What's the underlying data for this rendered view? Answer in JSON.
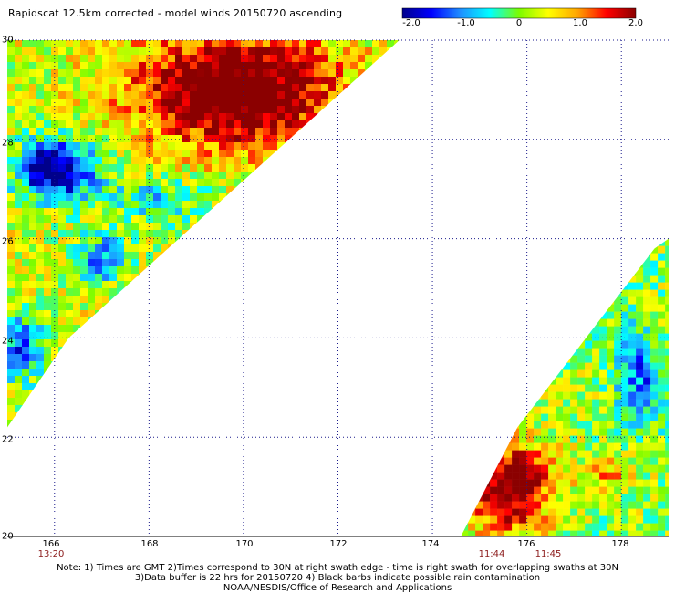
{
  "title": "Rapidscat 12.5km corrected - model winds 20150720 ascending",
  "colorbar": {
    "ticks": [
      {
        "label": "-2.0",
        "value": -2.0
      },
      {
        "label": "-1.0",
        "value": -1.0
      },
      {
        "label": "0",
        "value": 0
      },
      {
        "label": "1.0",
        "value": 1.0
      },
      {
        "label": "2.0",
        "value": 2.0
      }
    ],
    "stops": [
      "#00008b",
      "#0000ff",
      "#1e90ff",
      "#00ffff",
      "#7cfc00",
      "#ffff00",
      "#ffa500",
      "#ff0000",
      "#8b0000"
    ]
  },
  "map": {
    "lon_range": [
      165,
      179
    ],
    "lat_range": [
      20,
      30
    ],
    "lat_labels": [
      {
        "label": "30",
        "value": 30
      },
      {
        "label": "28",
        "value": 28
      },
      {
        "label": "26",
        "value": 26
      },
      {
        "label": "24",
        "value": 24
      },
      {
        "label": "22",
        "value": 22
      },
      {
        "label": "20",
        "value": 20
      }
    ],
    "lon_labels": [
      {
        "label": "166",
        "value": 166
      },
      {
        "label": "168",
        "value": 168
      },
      {
        "label": "170",
        "value": 170
      },
      {
        "label": "172",
        "value": 172
      },
      {
        "label": "174",
        "value": 174
      },
      {
        "label": "176",
        "value": 176
      },
      {
        "label": "178",
        "value": 178
      }
    ],
    "times": [
      {
        "label": "13:20",
        "lon": 166
      },
      {
        "label": "11:44",
        "lon": 175.2
      },
      {
        "label": "11:45",
        "lon": 176.5
      }
    ],
    "swaths": [
      {
        "name": "west swath",
        "polygon": [
          [
            165,
            30
          ],
          [
            173.3,
            30
          ],
          [
            166.3,
            24.0
          ],
          [
            165,
            22.2
          ]
        ]
      },
      {
        "name": "east swath",
        "polygon": [
          [
            174.6,
            20
          ],
          [
            179,
            20
          ],
          [
            179,
            26.0
          ],
          [
            178.7,
            25.8
          ],
          [
            175.8,
            22.2
          ]
        ]
      }
    ]
  },
  "notes": {
    "line1": "Note: 1) Times are GMT 2)Times correspond to 30N at right swath edge - time is right swath for overlapping swaths at 30N",
    "line2": "3)Data buffer is 22 hrs for 20150720 4) Black barbs indicate possible rain contamination",
    "line3": "NOAA/NESDIS/Office of Research and Applications"
  }
}
